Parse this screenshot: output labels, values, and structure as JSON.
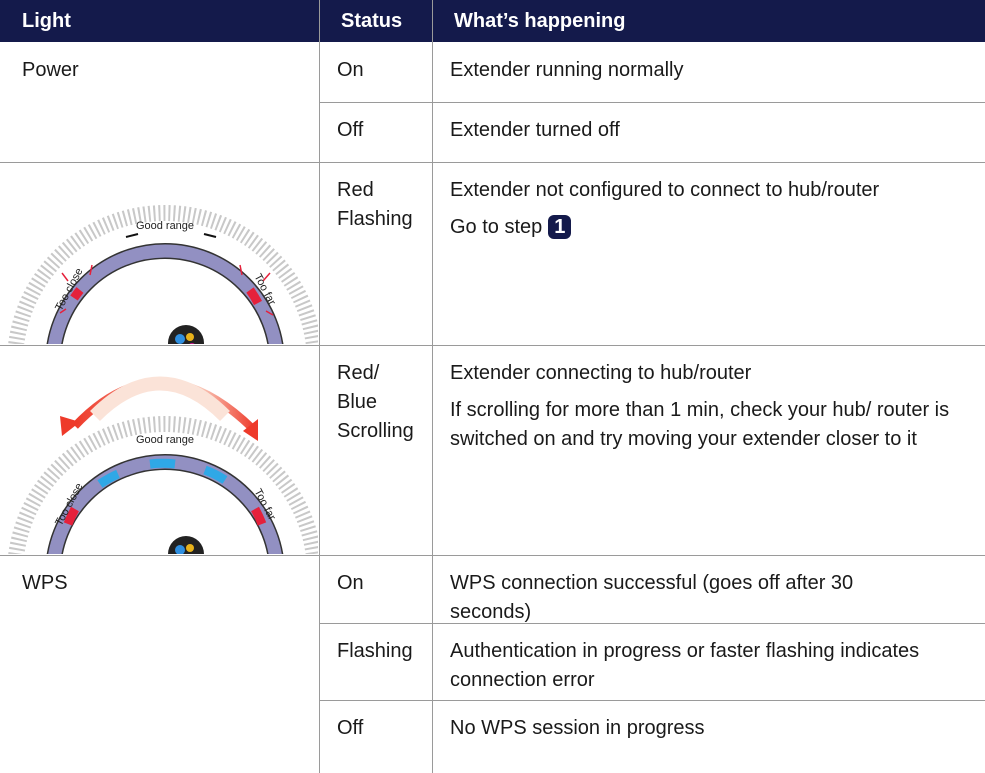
{
  "table": {
    "headers": [
      "Light",
      "Status",
      "What’s happening"
    ],
    "rows": [
      {
        "light": "Power",
        "status": [
          "On"
        ],
        "happening": [
          "Extender running normally"
        ]
      },
      {
        "status": [
          "Off"
        ],
        "happening": [
          "Extender turned off"
        ]
      },
      {
        "status": [
          "Red",
          "Flashing"
        ],
        "happening": [
          "Extender not configured to connect to hub/router"
        ],
        "step": {
          "text": "Go to step",
          "number": "1"
        },
        "illustration": {
          "labels": [
            "Good range",
            "Too close",
            "Too far"
          ]
        }
      },
      {
        "status": [
          "Red/",
          "Blue",
          "Scrolling"
        ],
        "happening": [
          "Extender connecting to hub/router",
          "If scrolling for more than 1 min, check your hub/ router is switched on and try moving your extender closer to it"
        ],
        "illustration": {
          "labels": [
            "Good range",
            "Too close",
            "Too far"
          ]
        }
      },
      {
        "light": "WPS",
        "status": [
          "On"
        ],
        "happening": [
          "WPS connection successful (goes off after 30 seconds)"
        ]
      },
      {
        "status": [
          "Flashing"
        ],
        "happening": [
          "Authentication in progress or faster flashing indicates connection error"
        ]
      },
      {
        "status": [
          "Off"
        ],
        "happening": [
          "No WPS session in progress"
        ]
      }
    ]
  }
}
